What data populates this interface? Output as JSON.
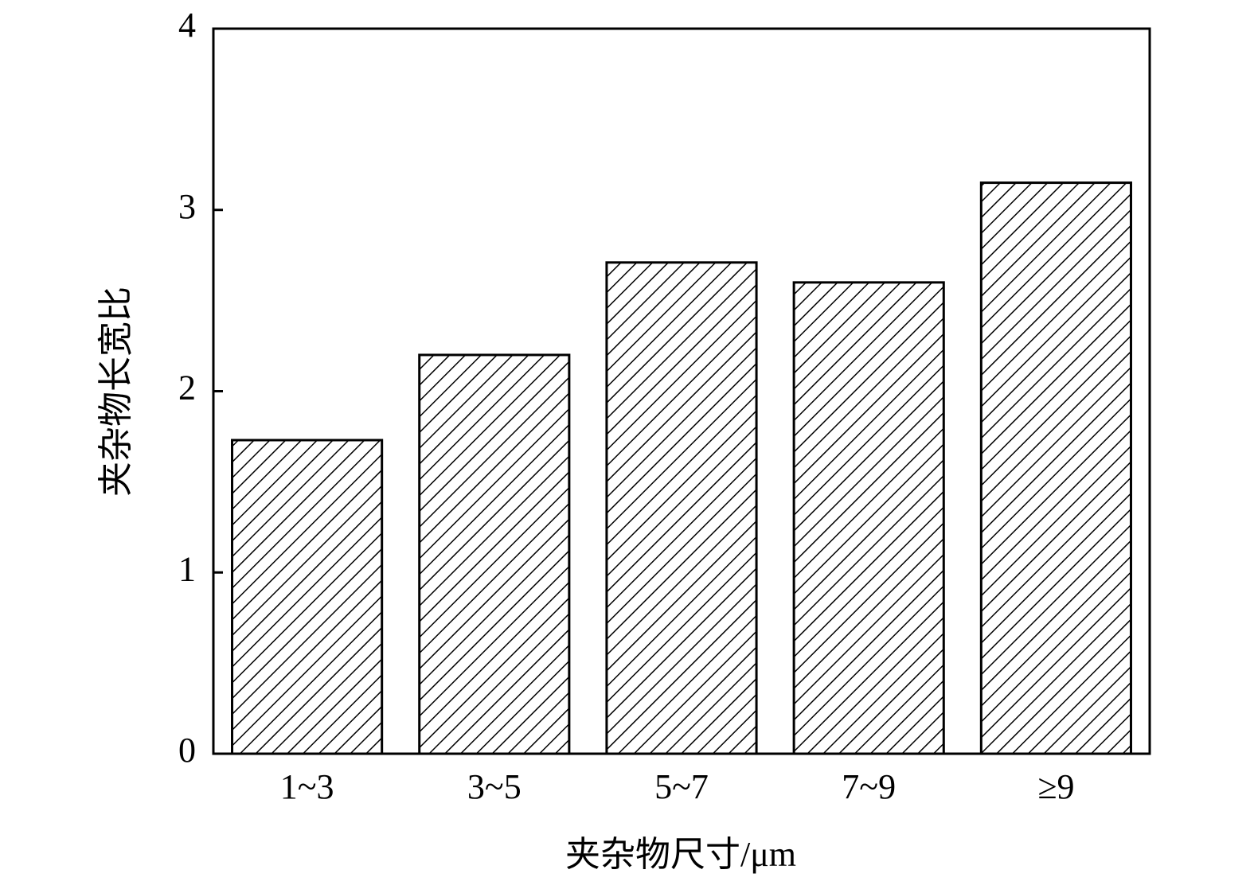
{
  "chart_data": {
    "type": "bar",
    "x_label": "夹杂物尺寸/μm",
    "y_label": "夹杂物长宽比",
    "categories": [
      "1~3",
      "3~5",
      "5~7",
      "7~9",
      "≥9"
    ],
    "values": [
      1.73,
      2.2,
      2.71,
      2.6,
      3.15
    ],
    "color": "#000000",
    "ylim": [
      0,
      4
    ],
    "yticks": [
      0,
      1,
      2,
      3,
      4
    ],
    "grid": false
  }
}
